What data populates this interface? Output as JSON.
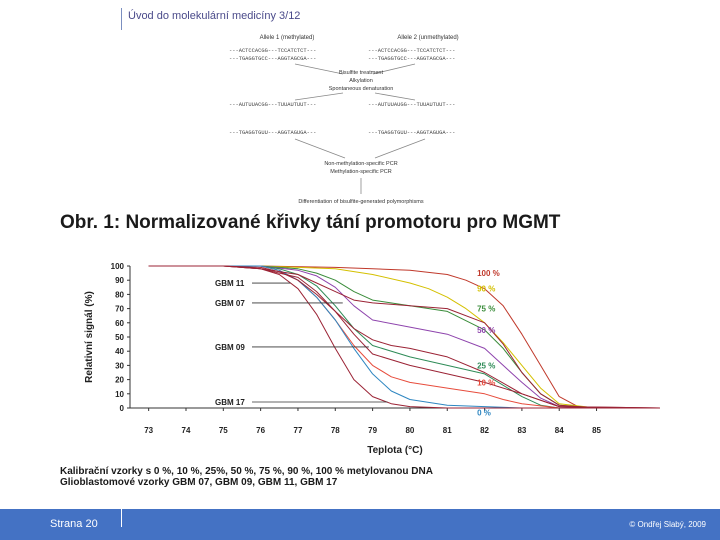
{
  "header": {
    "title": "Úvod do molekulární medicíny 3/12"
  },
  "footer": {
    "slide_number": "Strana 20",
    "copyright": "© Ondřej Slabý, 2009"
  },
  "diagram": {
    "allele1": "Allele 1 (methylated)",
    "allele2": "Allele 2 (unmethylated)",
    "seq_a1_top": "---ACTCCACGG---TCCATCTCT---",
    "seq_a1_bot": "---TGAGGTGCC---AGGTAGCGA---",
    "seq_a2_top": "---ACTCCACGG---TCCATCTCT---",
    "seq_a2_bot": "---TGAGGTGCC---AGGTAGCGA---",
    "steps": [
      "Bisulfite treatment",
      "Alkylation",
      "Spontaneous denaturation"
    ],
    "bs_a1": "---AUTUUACGG---TUUAUTUUT---",
    "bs_a2": "---AUTUUAUGG---TUUAUTUUT---",
    "bs_a1_bot": "---TGAGGTGUU---AGGTAGUGA---",
    "bs_a2_bot": "---TGAGGTGUU---AGGTAGUGA---",
    "pcr1": "Non-methylation-specific PCR",
    "pcr2": "Methylation-specific PCR",
    "result": "Differentiation of bisulfite-generated polymorphisms"
  },
  "figure_title": "Obr. 1: Normalizované křivky tání promotoru pro MGMT",
  "caption": {
    "line1": "Kalibrační vzorky s 0 %, 10 %, 25%, 50 %, 75 %, 90 %, 100 % metylovanou DNA",
    "line2": "Glioblastomové vzorky GBM 07, GBM 09, GBM 11, GBM 17"
  },
  "chart_data": {
    "type": "line",
    "title": "",
    "xlabel": "Teplota (°C)",
    "ylabel": "Relativní signál (%)",
    "xlim": [
      72.5,
      86.7
    ],
    "ylim": [
      0,
      100
    ],
    "x_ticks": [
      73,
      74,
      75,
      76,
      77,
      78,
      79,
      80,
      81,
      82,
      83,
      84,
      85
    ],
    "y_ticks": [
      0,
      10,
      20,
      30,
      40,
      50,
      60,
      70,
      80,
      90,
      100
    ],
    "grid": false,
    "series": [
      {
        "name": "100 %",
        "color": "#c0392b",
        "x": [
          73,
          76,
          78,
          79,
          80,
          81,
          81.5,
          82,
          82.5,
          83,
          83.5,
          84,
          84.5,
          85,
          86.7
        ],
        "y": [
          100,
          100,
          99,
          98,
          97,
          94,
          90,
          84,
          72,
          52,
          30,
          8,
          1,
          0,
          0
        ]
      },
      {
        "name": "90 %",
        "color": "#d4c000",
        "x": [
          73,
          76,
          77,
          78,
          79,
          80,
          80.5,
          81,
          81.5,
          82,
          82.5,
          83,
          83.5,
          84,
          85,
          86.7
        ],
        "y": [
          100,
          100,
          99,
          98,
          94,
          88,
          84,
          78,
          70,
          60,
          46,
          30,
          14,
          3,
          0,
          0
        ]
      },
      {
        "name": "75 %",
        "color": "#3a8c3a",
        "x": [
          73,
          76,
          77,
          77.5,
          78,
          78.5,
          79,
          80,
          81,
          82,
          82.5,
          83,
          83.5,
          84,
          85,
          86.7
        ],
        "y": [
          100,
          100,
          98,
          95,
          90,
          82,
          76,
          72,
          68,
          55,
          42,
          25,
          10,
          2,
          0,
          0
        ]
      },
      {
        "name": "50 %",
        "color": "#8e44ad",
        "x": [
          73,
          76,
          77,
          77.5,
          78,
          78.5,
          79,
          80,
          81,
          82,
          82.5,
          83,
          83.5,
          84,
          85,
          86.7
        ],
        "y": [
          100,
          100,
          97,
          93,
          85,
          72,
          62,
          57,
          52,
          42,
          30,
          18,
          7,
          1,
          0,
          0
        ]
      },
      {
        "name": "25 %",
        "color": "#2e8b57",
        "x": [
          73,
          76,
          76.5,
          77,
          77.5,
          78,
          78.5,
          79,
          80,
          81,
          82,
          82.5,
          83,
          83.5,
          84,
          85,
          86.7
        ],
        "y": [
          100,
          100,
          98,
          94,
          86,
          72,
          56,
          44,
          36,
          30,
          24,
          16,
          8,
          2,
          0,
          0,
          0
        ]
      },
      {
        "name": "10 %",
        "color": "#e74c3c",
        "x": [
          73,
          76,
          76.5,
          77,
          77.5,
          78,
          78.5,
          79,
          79.5,
          80,
          81,
          82,
          82.5,
          83,
          84,
          86.7
        ],
        "y": [
          100,
          100,
          97,
          90,
          78,
          62,
          44,
          30,
          22,
          18,
          14,
          10,
          6,
          3,
          0,
          0
        ]
      },
      {
        "name": "0 %",
        "color": "#2e86c1",
        "x": [
          73,
          76,
          76.5,
          77,
          77.5,
          78,
          78.5,
          79,
          79.5,
          80,
          81,
          82,
          83,
          84,
          86.7
        ],
        "y": [
          100,
          100,
          97,
          90,
          78,
          62,
          42,
          24,
          12,
          6,
          2,
          1,
          0,
          0,
          0
        ]
      },
      {
        "name": "GBM 11",
        "color": "#9b2335",
        "x": [
          73,
          75,
          76,
          77,
          77.5,
          78,
          78.5,
          79,
          80,
          81,
          82,
          82.5,
          83,
          83.5,
          84,
          85,
          86.7
        ],
        "y": [
          100,
          100,
          98,
          94,
          88,
          82,
          76,
          74,
          72,
          70,
          60,
          45,
          25,
          10,
          2,
          0,
          0
        ]
      },
      {
        "name": "GBM 07",
        "color": "#9b2335",
        "x": [
          73,
          75,
          76,
          76.5,
          77,
          77.5,
          78,
          78.5,
          79,
          79.5,
          80,
          81,
          82,
          83,
          84,
          86.7
        ],
        "y": [
          100,
          100,
          99,
          96,
          90,
          80,
          68,
          56,
          48,
          44,
          42,
          36,
          25,
          10,
          1,
          0
        ]
      },
      {
        "name": "GBM 09",
        "color": "#9b2335",
        "x": [
          73,
          75,
          76,
          77,
          77.5,
          78,
          78.5,
          79,
          80,
          81,
          82,
          83,
          84,
          86.7
        ],
        "y": [
          100,
          100,
          98,
          92,
          82,
          68,
          52,
          38,
          30,
          24,
          18,
          10,
          1,
          0
        ]
      },
      {
        "name": "GBM 17",
        "color": "#9b2335",
        "x": [
          73,
          75,
          76,
          76.5,
          77,
          77.5,
          78,
          78.5,
          79,
          79.5,
          80,
          81,
          82,
          86.7
        ],
        "y": [
          100,
          100,
          98,
          94,
          84,
          66,
          42,
          20,
          8,
          3,
          1,
          0,
          0,
          0
        ]
      }
    ],
    "curve_labels": [
      {
        "text": "100 %",
        "x": 81.8,
        "y": 95,
        "color": "#c0392b"
      },
      {
        "text": "90 %",
        "x": 81.8,
        "y": 84,
        "color": "#d4c000"
      },
      {
        "text": "75 %",
        "x": 81.8,
        "y": 70,
        "color": "#3a8c3a"
      },
      {
        "text": "50 %",
        "x": 81.8,
        "y": 55,
        "color": "#8e44ad"
      },
      {
        "text": "25 %",
        "x": 81.8,
        "y": 30,
        "color": "#2e8b57"
      },
      {
        "text": "10 %",
        "x": 81.8,
        "y": 18,
        "color": "#e74c3c"
      },
      {
        "text": "0 %",
        "x": 81.8,
        "y": -3,
        "color": "#2e86c1"
      }
    ],
    "gbm_labels": [
      {
        "text": "GBM 11",
        "y": 88,
        "x_end": 76.8
      },
      {
        "text": "GBM 07",
        "y": 74,
        "x_end": 78.2
      },
      {
        "text": "GBM 09",
        "y": 43,
        "x_end": 78.9
      },
      {
        "text": "GBM 17",
        "y": 0,
        "x_end": 79.4
      }
    ]
  }
}
